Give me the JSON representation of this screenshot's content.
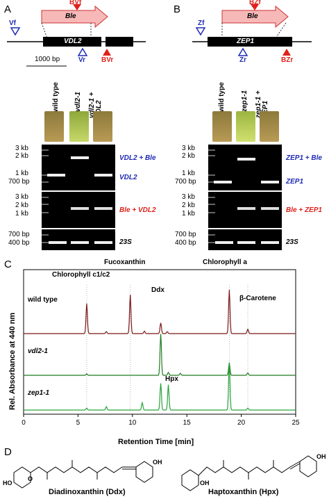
{
  "panels": {
    "A": {
      "letter": "A",
      "gene": "VDL2",
      "insert": "Ble",
      "fwd_outer": "Vf",
      "rev_outer": "Vr",
      "fwd_inner": "BVf",
      "rev_inner": "BVr",
      "scale_label": "1000 bp",
      "lanes": [
        "wild type",
        "vdl2-1",
        "vdl2-1 + VDL2"
      ],
      "ladder_top": [
        "3 kb",
        "2 kb",
        "1 kb",
        "700 bp"
      ],
      "ladder_mid": [
        "3 kb",
        "2 kb",
        "1 kb"
      ],
      "ladder_bot": [
        "700 bp",
        "400 bp"
      ],
      "band_labels": {
        "b1": "VDL2 + Ble",
        "b2": "VDL2",
        "b3": "Ble + VDL2",
        "b4": "23S"
      }
    },
    "B": {
      "letter": "B",
      "gene": "ZEP1",
      "insert": "Ble",
      "fwd_outer": "Zf",
      "rev_outer": "Zr",
      "fwd_inner": "BZf",
      "rev_inner": "BZr",
      "lanes": [
        "wild type",
        "zep1-1",
        "zep1-1 + ZEP1"
      ],
      "ladder_top": [
        "3 kb",
        "2 kb",
        "1 kb",
        "700 bp"
      ],
      "ladder_mid": [
        "3 kb",
        "2 kb",
        "1 kb"
      ],
      "ladder_bot": [
        "700 bp",
        "400 bp"
      ],
      "band_labels": {
        "b1": "ZEP1 + Ble",
        "b2": "ZEP1",
        "b3": "Ble + ZEP1",
        "b4": "23S"
      }
    },
    "C": {
      "letter": "C",
      "chart_data": {
        "type": "line",
        "xlabel": "Retention Time [min]",
        "ylabel": "Rel. Absorbance at 440 nm",
        "xlim": [
          0,
          25
        ],
        "xticks": [
          0,
          5,
          10,
          15,
          20,
          25
        ],
        "series": [
          {
            "name": "wild type",
            "color": "#7a1616",
            "peaks": [
              [
                5.8,
                0.62
              ],
              [
                7.6,
                0.04
              ],
              [
                9.8,
                0.8
              ],
              [
                11.1,
                0.05
              ],
              [
                12.6,
                0.22
              ],
              [
                13.2,
                0.04
              ],
              [
                18.9,
                0.9
              ],
              [
                20.6,
                0.09
              ]
            ]
          },
          {
            "name": "vdl2-1",
            "color": "#1e7a1e",
            "peaks": [
              [
                5.8,
                0.03
              ],
              [
                12.6,
                0.85
              ],
              [
                13.3,
                0.06
              ],
              [
                14.4,
                0.04
              ],
              [
                18.9,
                0.25
              ],
              [
                20.6,
                0.05
              ]
            ]
          },
          {
            "name": "zep1-1",
            "color": "#27a33a",
            "peaks": [
              [
                5.8,
                0.04
              ],
              [
                7.6,
                0.07
              ],
              [
                10.9,
                0.15
              ],
              [
                12.6,
                0.55
              ],
              [
                13.3,
                0.52
              ],
              [
                18.9,
                0.98
              ],
              [
                20.6,
                0.04
              ]
            ]
          }
        ],
        "peak_labels": [
          "Chlorophyll c1/c2",
          "Fucoxanthin",
          "Ddx",
          "Chlorophyll a",
          "β-Carotene",
          "Hpx"
        ],
        "guide_lines_x": [
          5.8,
          9.8,
          18.9,
          20.6
        ]
      }
    },
    "D": {
      "letter": "D",
      "structures": [
        "Diadinoxanthin (Ddx)",
        "Haptoxanthin (Hpx)"
      ],
      "atom_labels": {
        "ho": "HO",
        "oh": "OH",
        "o": "O"
      }
    }
  }
}
